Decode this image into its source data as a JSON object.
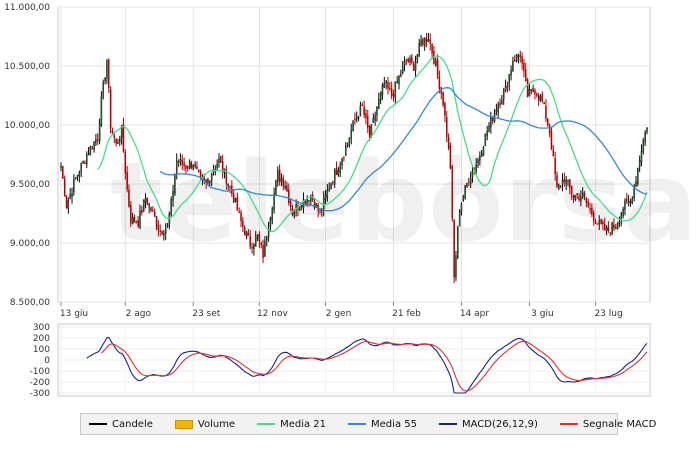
{
  "watermark": "telebörsa",
  "chart_data": [
    {
      "type": "candlestick",
      "title": "",
      "x_tick_labels": [
        "13 giu",
        "2 ago",
        "23 set",
        "12 nov",
        "2 gen",
        "21 feb",
        "14 apr",
        "3 giu",
        "23 lug"
      ],
      "x_tick_positions": [
        0,
        35,
        72,
        108,
        144,
        181,
        218,
        255,
        291
      ],
      "y_tick_labels": [
        "8.500,00",
        "9.000,00",
        "9.500,00",
        "10.000,00",
        "10.500,00",
        "11.000,00"
      ],
      "ylim": [
        8500,
        11000
      ],
      "x_count": 320,
      "grid": true,
      "close_anchors": [
        [
          0,
          9650
        ],
        [
          3,
          9320
        ],
        [
          8,
          9550
        ],
        [
          15,
          9780
        ],
        [
          20,
          9900
        ],
        [
          22,
          10200
        ],
        [
          25,
          10550
        ],
        [
          27,
          10000
        ],
        [
          30,
          9830
        ],
        [
          33,
          9950
        ],
        [
          36,
          9450
        ],
        [
          38,
          9200
        ],
        [
          42,
          9180
        ],
        [
          46,
          9380
        ],
        [
          50,
          9250
        ],
        [
          54,
          9100
        ],
        [
          58,
          9140
        ],
        [
          60,
          9330
        ],
        [
          63,
          9700
        ],
        [
          68,
          9650
        ],
        [
          72,
          9680
        ],
        [
          76,
          9520
        ],
        [
          79,
          9500
        ],
        [
          82,
          9600
        ],
        [
          86,
          9700
        ],
        [
          90,
          9550
        ],
        [
          94,
          9380
        ],
        [
          98,
          9180
        ],
        [
          103,
          8990
        ],
        [
          107,
          9050
        ],
        [
          110,
          8900
        ],
        [
          114,
          9250
        ],
        [
          118,
          9580
        ],
        [
          122,
          9500
        ],
        [
          126,
          9260
        ],
        [
          130,
          9340
        ],
        [
          136,
          9400
        ],
        [
          141,
          9250
        ],
        [
          146,
          9480
        ],
        [
          151,
          9650
        ],
        [
          156,
          9850
        ],
        [
          160,
          10050
        ],
        [
          164,
          10150
        ],
        [
          168,
          9900
        ],
        [
          172,
          10150
        ],
        [
          176,
          10350
        ],
        [
          180,
          10250
        ],
        [
          184,
          10400
        ],
        [
          188,
          10550
        ],
        [
          192,
          10500
        ],
        [
          196,
          10700
        ],
        [
          200,
          10750
        ],
        [
          204,
          10500
        ],
        [
          208,
          10200
        ],
        [
          212,
          9650
        ],
        [
          214,
          8700
        ],
        [
          217,
          9300
        ],
        [
          222,
          9550
        ],
        [
          227,
          9700
        ],
        [
          232,
          9950
        ],
        [
          237,
          10150
        ],
        [
          242,
          10300
        ],
        [
          246,
          10550
        ],
        [
          250,
          10600
        ],
        [
          254,
          10250
        ],
        [
          258,
          10300
        ],
        [
          262,
          10200
        ],
        [
          266,
          9950
        ],
        [
          270,
          9450
        ],
        [
          274,
          9550
        ],
        [
          279,
          9400
        ],
        [
          284,
          9400
        ],
        [
          289,
          9250
        ],
        [
          293,
          9150
        ],
        [
          297,
          9100
        ],
        [
          302,
          9150
        ],
        [
          306,
          9300
        ],
        [
          310,
          9350
        ],
        [
          313,
          9550
        ],
        [
          316,
          9800
        ],
        [
          319,
          10000
        ]
      ],
      "series": [
        {
          "name": "Candele",
          "type": "candlestick",
          "up_color": "#0a0a0a",
          "down_color": "#b00000"
        },
        {
          "name": "Media 21",
          "type": "line",
          "window": 21,
          "color": "#44dd88"
        },
        {
          "name": "Media 55",
          "type": "line",
          "window": 55,
          "color": "#3388dd"
        }
      ]
    },
    {
      "type": "line",
      "title": "",
      "y_tick_labels": [
        "300",
        "200",
        "100",
        "0",
        "-100",
        "-200",
        "-300"
      ],
      "ylim": [
        -300,
        300
      ],
      "grid": true,
      "series": [
        {
          "name": "MACD(26,12,9)",
          "color": "#1a237e"
        },
        {
          "name": "Segnale MACD",
          "color": "#e03030"
        }
      ]
    }
  ],
  "legend": [
    {
      "label": "Candele",
      "color": "#000000",
      "style": "line"
    },
    {
      "label": "Volume",
      "color": "#ffb300",
      "style": "block"
    },
    {
      "label": "Media 21",
      "color": "#44dd88",
      "style": "line"
    },
    {
      "label": "Media 55",
      "color": "#3388dd",
      "style": "line"
    },
    {
      "label": "MACD(26,12,9)",
      "color": "#1a237e",
      "style": "line"
    },
    {
      "label": "Segnale MACD",
      "color": "#e03030",
      "style": "line"
    }
  ]
}
